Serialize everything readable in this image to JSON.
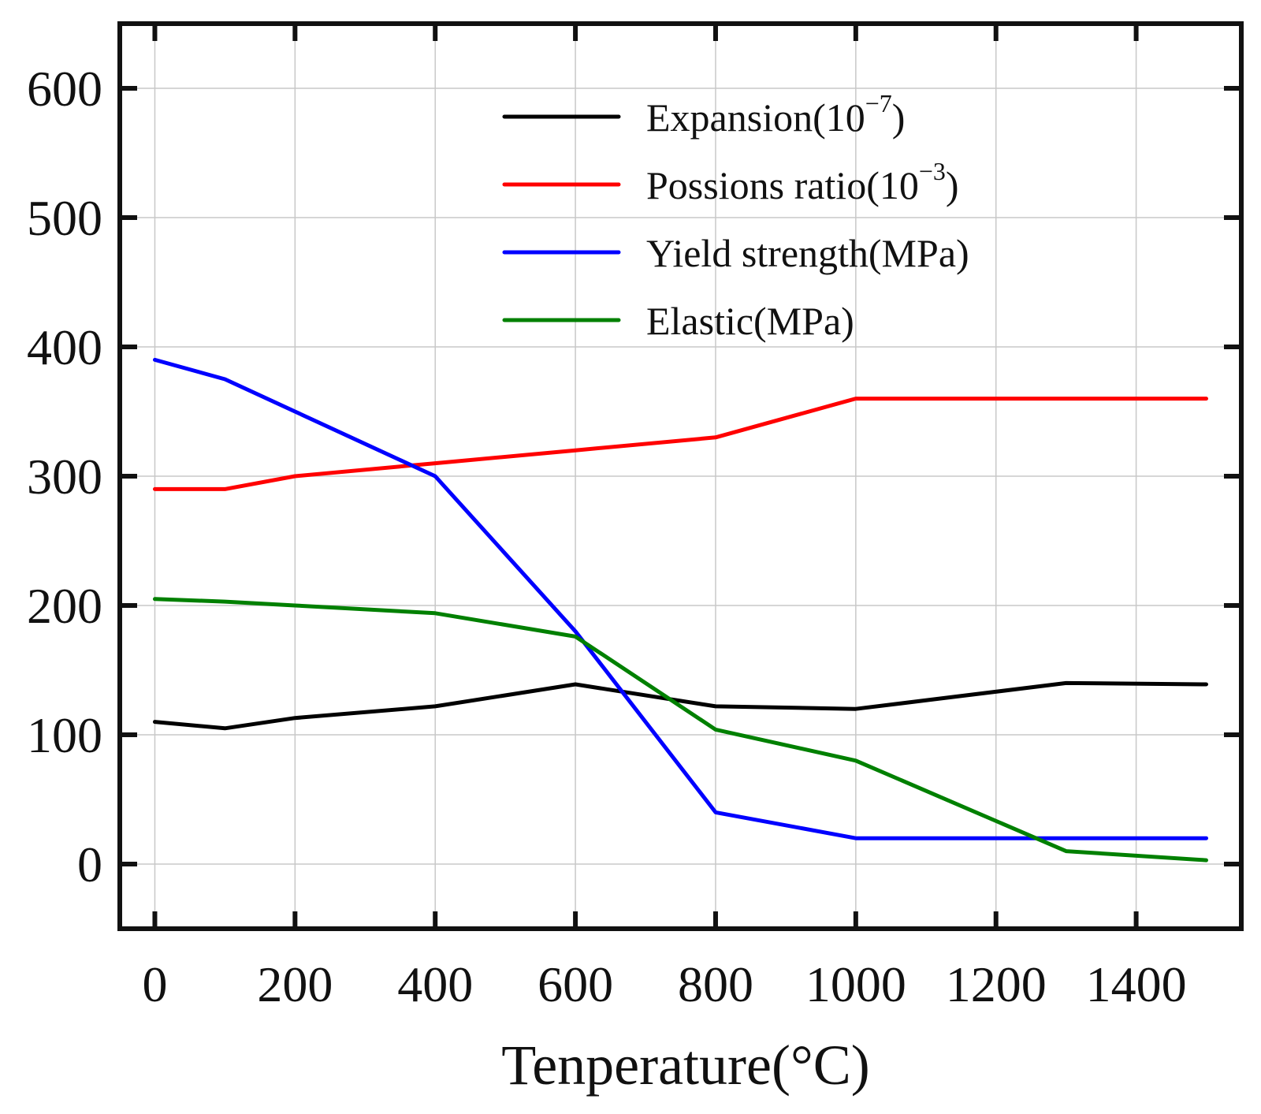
{
  "chart_data": {
    "type": "line",
    "title": "",
    "xlabel": "Tenperature(°C)",
    "ylabel": "",
    "xlim": [
      -50,
      1550
    ],
    "ylim": [
      -50,
      650
    ],
    "x_ticks": [
      0,
      200,
      400,
      600,
      800,
      1000,
      1200,
      1400
    ],
    "x_tick_labels": [
      "0",
      "200",
      "400",
      "600",
      "800",
      "1000",
      "1200",
      "1400"
    ],
    "y_ticks": [
      0,
      100,
      200,
      300,
      400,
      500,
      600
    ],
    "y_tick_labels": [
      "0",
      "100",
      "200",
      "300",
      "400",
      "500",
      "600"
    ],
    "grid": true,
    "legend_position": "top-right",
    "series": [
      {
        "name": "Expansion",
        "label_main": "Expansion(10",
        "label_sup": "−7",
        "label_end": ")",
        "color": "#000000",
        "x": [
          0,
          100,
          200,
          400,
          600,
          800,
          1000,
          1300,
          1500
        ],
        "values": [
          110,
          105,
          113,
          122,
          139,
          122,
          120,
          140,
          139
        ]
      },
      {
        "name": "Possions ratio",
        "label_main": "Possions ratio(10",
        "label_sup": "−3",
        "label_end": ")",
        "color": "#ff0000",
        "x": [
          0,
          100,
          200,
          400,
          600,
          800,
          1000,
          1300,
          1500
        ],
        "values": [
          290,
          290,
          300,
          310,
          320,
          330,
          360,
          360,
          360
        ]
      },
      {
        "name": "Yield strength",
        "label_main": "Yield strength(MPa)",
        "label_sup": "",
        "label_end": "",
        "color": "#0000ff",
        "x": [
          0,
          100,
          200,
          400,
          600,
          800,
          1000,
          1300,
          1500
        ],
        "values": [
          390,
          375,
          350,
          300,
          180,
          40,
          20,
          20,
          20
        ]
      },
      {
        "name": "Elastic",
        "label_main": "Elastic(MPa)",
        "label_sup": "",
        "label_end": "",
        "color": "#008000",
        "x": [
          0,
          100,
          200,
          400,
          600,
          800,
          1000,
          1300,
          1500
        ],
        "values": [
          205,
          203,
          200,
          194,
          176,
          104,
          80,
          10,
          3
        ]
      }
    ]
  }
}
